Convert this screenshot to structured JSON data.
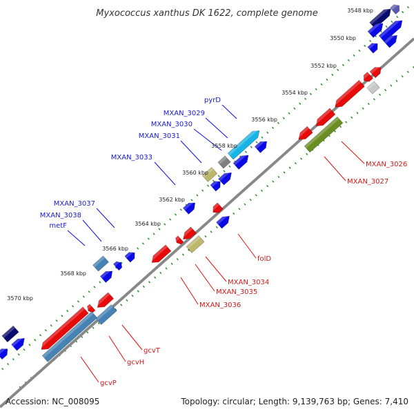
{
  "title": "Myxococcus xanthus DK 1622, complete genome",
  "footer": {
    "accession": "Accession: NC_008095",
    "topology": "Topology: circular; Length: 9,139,763 bp; Genes: 7,410"
  },
  "ticks": [
    "3548 kbp",
    "3550 kbp",
    "3552 kbp",
    "3554 kbp",
    "3556 kbp",
    "3558 kbp",
    "3560 kbp",
    "3562 kbp",
    "3564 kbp",
    "3566 kbp",
    "3568 kbp",
    "3570 kbp"
  ],
  "labels_forward": [
    "pyrD",
    "MXAN_3029",
    "MXAN_3030",
    "MXAN_3031",
    "MXAN_3033",
    "MXAN_3037",
    "MXAN_3038",
    "metF"
  ],
  "labels_reverse": [
    "MXAN_3026",
    "MXAN_3027",
    "folD",
    "MXAN_3034",
    "MXAN_3035",
    "MXAN_3036",
    "gcvT",
    "gcvH",
    "gcvP"
  ],
  "colors": {
    "forward": "#0a0ae6",
    "reverse": "#e60a0a",
    "navy": "#0a0a6e",
    "lavender": "#5a5ab4",
    "skyblue": "#19b4e6",
    "steelblue": "#4682b4",
    "olive": "#6b8e23",
    "khaki": "#bdb76b",
    "gray": "#808080",
    "lightgray": "#c8c8c8",
    "backbone": "#888888",
    "ruler": "#2a8a2a"
  }
}
